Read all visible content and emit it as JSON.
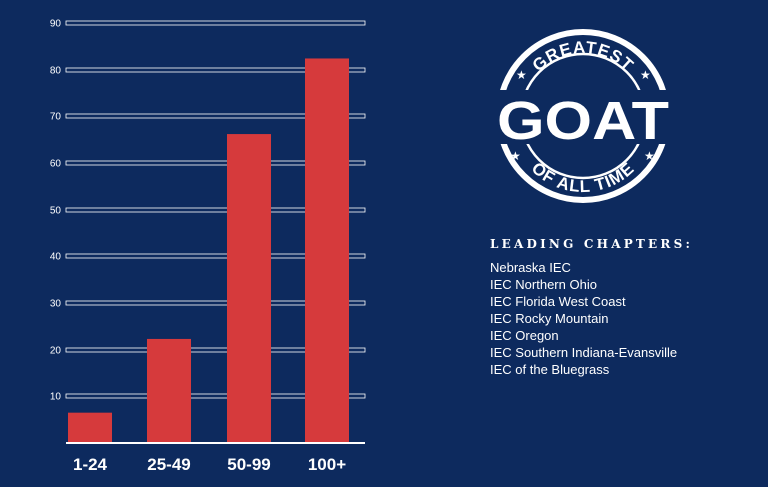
{
  "chart_data": {
    "type": "bar",
    "categories": [
      "1-24",
      "25-49",
      "50-99",
      "100+"
    ],
    "values": [
      6.5,
      22.3,
      66.2,
      82.4
    ],
    "ylim": [
      0,
      90
    ],
    "yticks": [
      10,
      20,
      30,
      40,
      50,
      60,
      70,
      80,
      90
    ],
    "grid": true,
    "colors": {
      "bar": "#d63a3c",
      "background": "#0d2a5e",
      "text": "#ffffff",
      "axis": "#ffffff"
    }
  },
  "badge": {
    "top_text": "GREATEST",
    "main_text": "GOAT",
    "bottom_text": "OF ALL TIME"
  },
  "chapters": {
    "heading": "LEADING CHAPTERS:",
    "items": [
      "Nebraska IEC",
      "IEC Northern Ohio",
      "IEC Florida West Coast",
      "IEC Rocky Mountain",
      "IEC Oregon",
      "IEC Southern Indiana-Evansville",
      "IEC of the Bluegrass"
    ]
  }
}
